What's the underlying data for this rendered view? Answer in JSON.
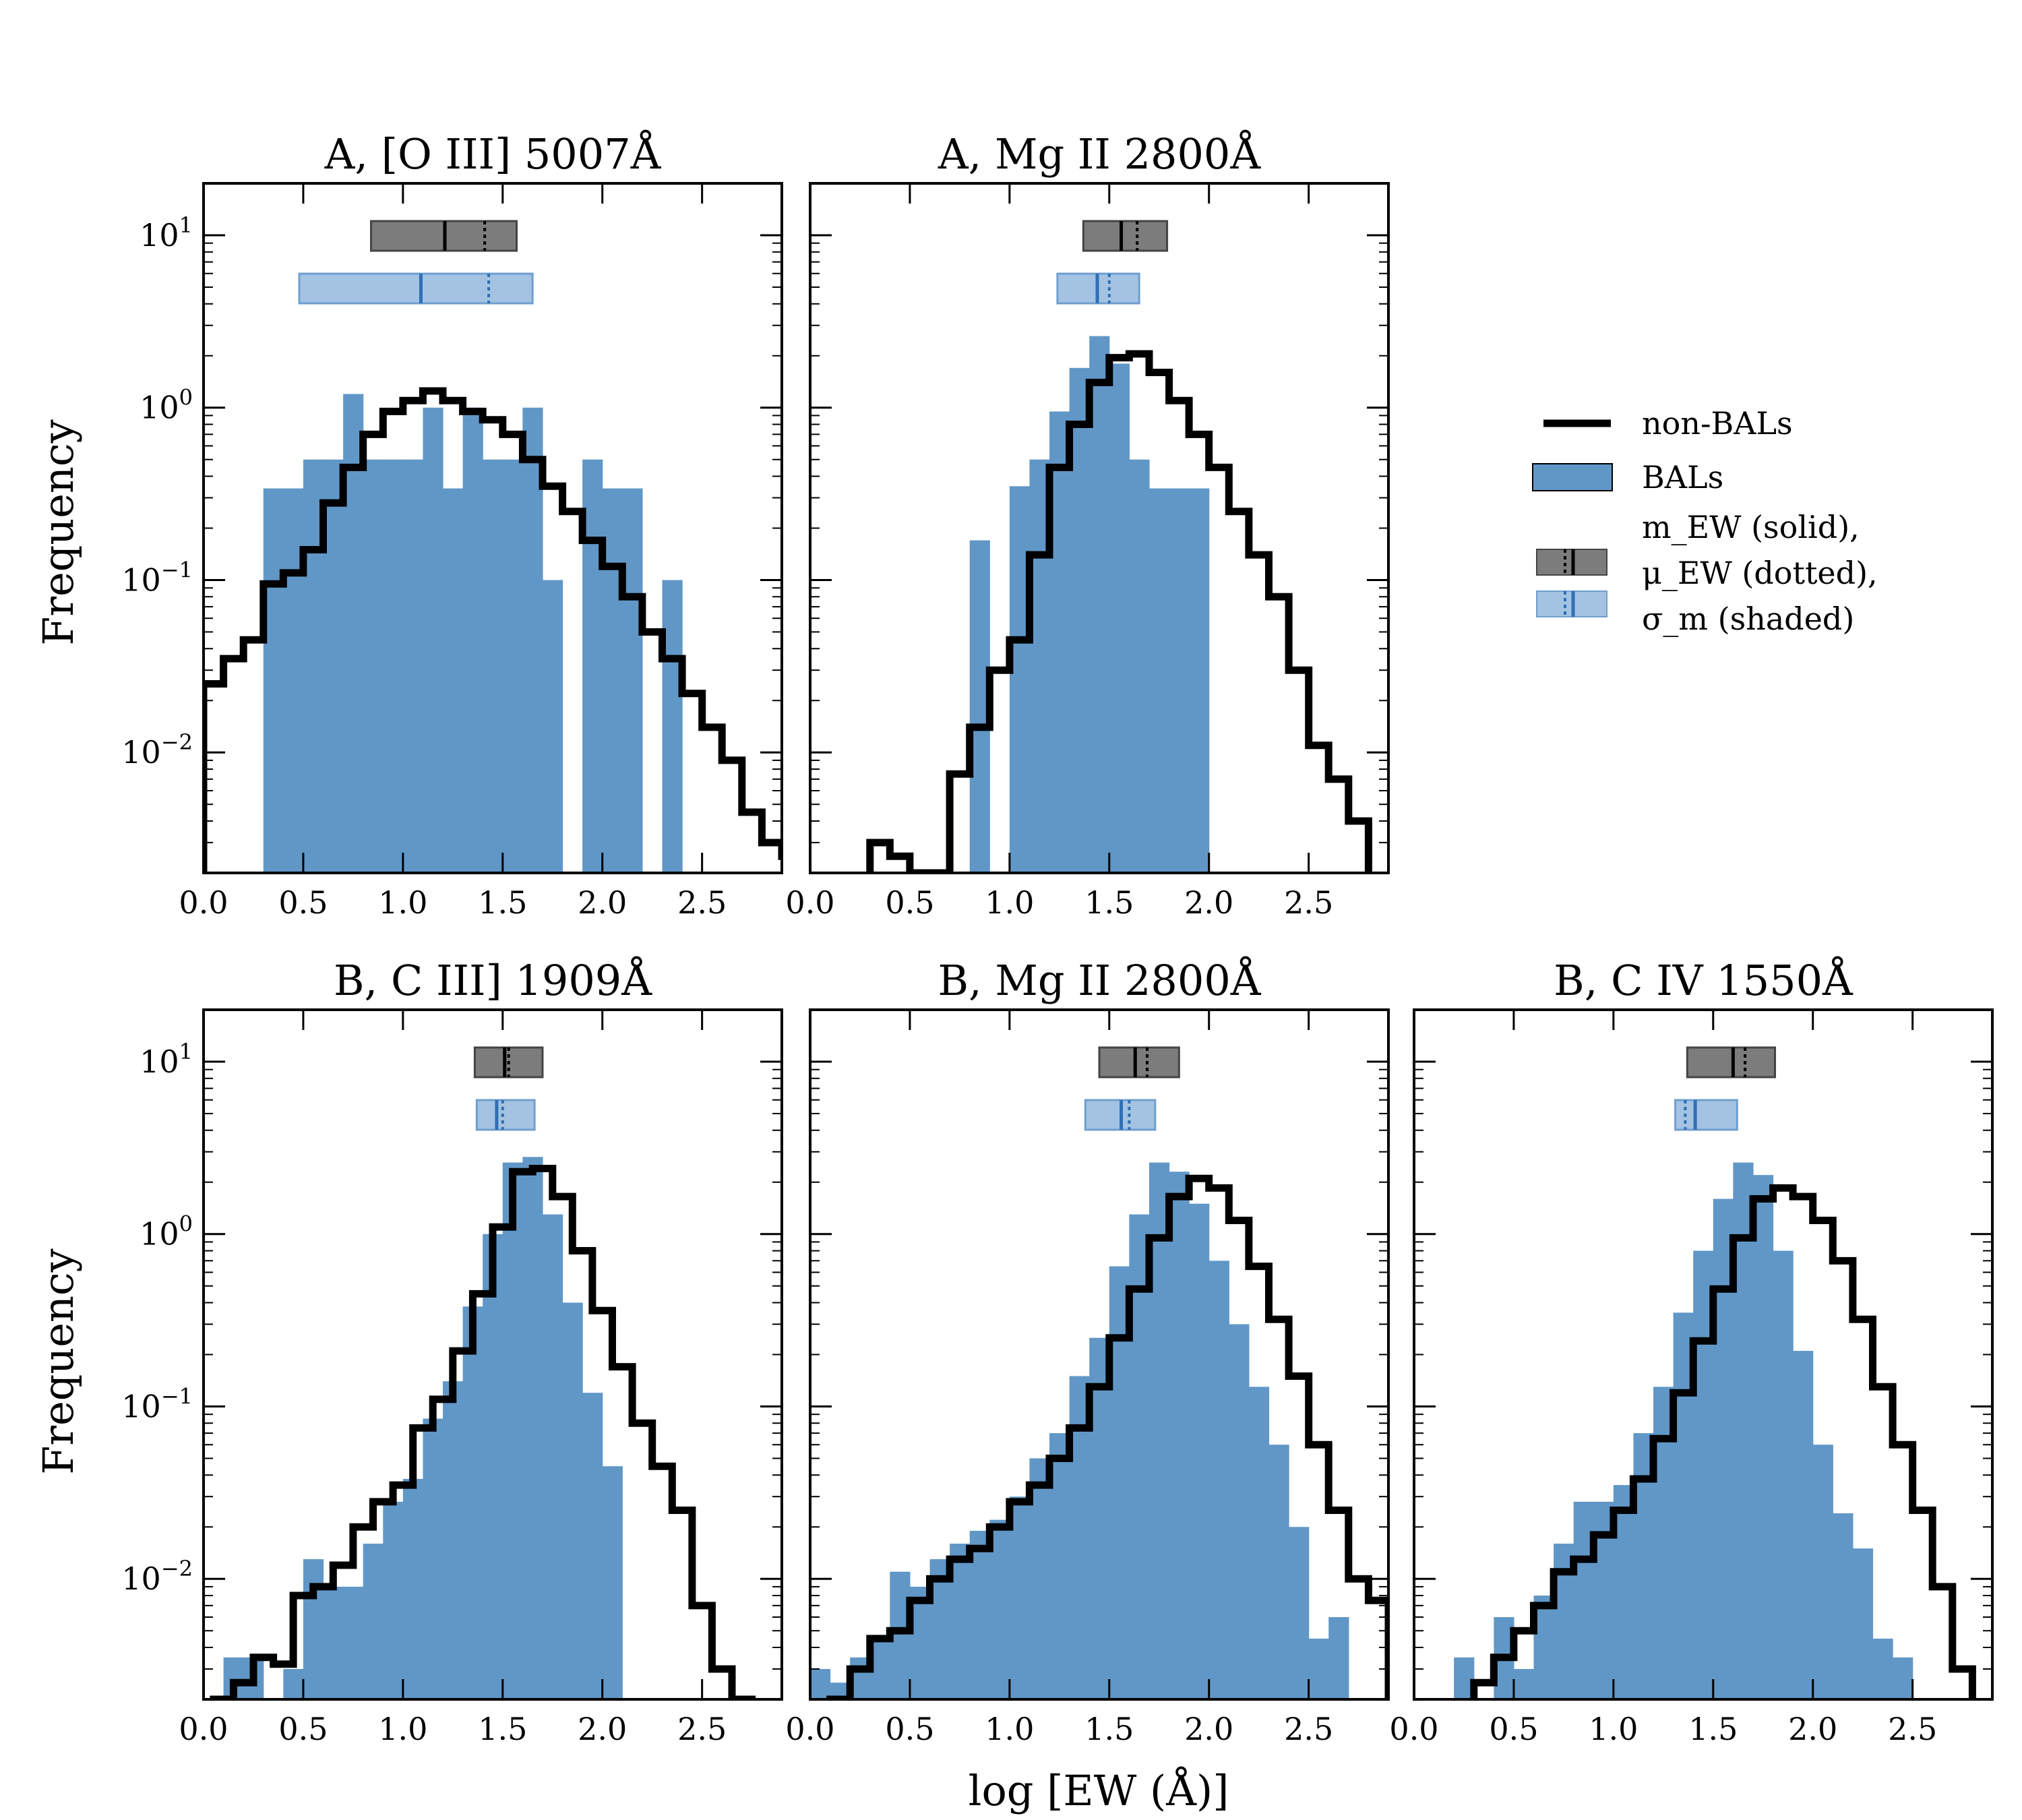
{
  "figure": {
    "xlabel": "log [EW (Å)]",
    "ylabel": "Frequency",
    "legend": {
      "placement": "right",
      "nonbal_label": "non-BALs",
      "bal_label": "BALs",
      "markers_label_lines": [
        "m_EW (solid),",
        "μ_EW (dotted),",
        "σ_m (shaded)"
      ]
    },
    "colors": {
      "bal_fill": "#6097c7",
      "bal_marker_fill": "#a4c3e2",
      "bal_marker_line": "#2f6fb5",
      "nonbal_line": "#000000",
      "nonbal_marker_fill": "#7c7c7c"
    }
  },
  "chart_data": [
    {
      "type": "histogram",
      "title": "A, [O III] 5007Å",
      "xlim": [
        0,
        2.9
      ],
      "ylim": [
        0.002,
        20
      ],
      "yscale": "log",
      "xticks": [
        "0.0",
        "0.5",
        "1.0",
        "1.5",
        "2.0",
        "2.5"
      ],
      "yticks": [
        "10^-2",
        "10^-1",
        "10^0",
        "10^1"
      ],
      "bin_width": 0.1,
      "bal_bins_start": 0.3,
      "bal_values": [
        0.34,
        0.34,
        0.5,
        0.5,
        1.2,
        0.5,
        0.5,
        0.5,
        1.0,
        0.34,
        1.0,
        0.5,
        0.5,
        1.0,
        0.1,
        0.002,
        0.5,
        0.34,
        0.34,
        0.002,
        0.1,
        0.002
      ],
      "nonbal_bins_start": 0.0,
      "nonbal_values": [
        0.025,
        0.035,
        0.045,
        0.095,
        0.11,
        0.15,
        0.28,
        0.45,
        0.7,
        0.95,
        1.1,
        1.25,
        1.1,
        0.95,
        0.85,
        0.7,
        0.5,
        0.35,
        0.25,
        0.17,
        0.12,
        0.08,
        0.05,
        0.035,
        0.022,
        0.014,
        0.009,
        0.0045,
        0.003,
        0.0025
      ],
      "nonbal_marker": {
        "median": 1.21,
        "mean": 1.41,
        "sigma": [
          0.84,
          1.57
        ]
      },
      "bal_marker": {
        "median": 1.09,
        "mean": 1.43,
        "sigma": [
          0.48,
          1.65
        ]
      }
    },
    {
      "type": "histogram",
      "title": "A, Mg II 2800Å",
      "xlim": [
        0,
        2.9
      ],
      "ylim": [
        0.002,
        20
      ],
      "yscale": "log",
      "xticks": [
        "0.0",
        "0.5",
        "1.0",
        "1.5",
        "2.0",
        "2.5"
      ],
      "yticks": [
        "10^-2",
        "10^-1",
        "10^0",
        "10^1"
      ],
      "bin_width": 0.1,
      "bal_bins_start": 0.8,
      "bal_values": [
        0.17,
        0.002,
        0.35,
        0.5,
        0.95,
        1.7,
        2.6,
        1.8,
        0.5,
        0.34,
        0.34,
        0.34
      ],
      "nonbal_bins_start": 0.3,
      "nonbal_values": [
        0.003,
        0.0025,
        0.002,
        0.002,
        0.0075,
        0.014,
        0.03,
        0.045,
        0.14,
        0.45,
        0.8,
        1.4,
        1.95,
        2.05,
        1.6,
        1.1,
        0.7,
        0.45,
        0.25,
        0.14,
        0.08,
        0.03,
        0.011,
        0.007,
        0.004
      ],
      "nonbal_marker": {
        "median": 1.56,
        "mean": 1.64,
        "sigma": [
          1.37,
          1.79
        ]
      },
      "bal_marker": {
        "median": 1.44,
        "mean": 1.5,
        "sigma": [
          1.24,
          1.65
        ]
      }
    },
    {
      "type": "histogram",
      "title": "B, C III] 1909Å",
      "xlim": [
        0,
        2.9
      ],
      "ylim": [
        0.002,
        20
      ],
      "yscale": "log",
      "xticks": [
        "0.0",
        "0.5",
        "1.0",
        "1.5",
        "2.0",
        "2.5"
      ],
      "yticks": [
        "10^-2",
        "10^-1",
        "10^0",
        "10^1"
      ],
      "bin_width": 0.1,
      "bal_bins_start": 0.1,
      "bal_values": [
        0.0035,
        0.0035,
        0.002,
        0.003,
        0.013,
        0.009,
        0.009,
        0.016,
        0.028,
        0.038,
        0.085,
        0.14,
        0.38,
        1.0,
        2.6,
        2.8,
        1.3,
        0.4,
        0.12,
        0.045
      ],
      "nonbal_bins_start": 0.05,
      "nonbal_values": [
        0.002,
        0.0025,
        0.0035,
        0.0032,
        0.008,
        0.009,
        0.012,
        0.02,
        0.028,
        0.035,
        0.075,
        0.11,
        0.21,
        0.45,
        1.1,
        2.3,
        2.4,
        1.65,
        0.8,
        0.36,
        0.17,
        0.08,
        0.045,
        0.025,
        0.007,
        0.003,
        0.002
      ],
      "nonbal_marker": {
        "median": 1.51,
        "mean": 1.53,
        "sigma": [
          1.36,
          1.7
        ]
      },
      "bal_marker": {
        "median": 1.47,
        "mean": 1.5,
        "sigma": [
          1.37,
          1.66
        ]
      }
    },
    {
      "type": "histogram",
      "title": "B, Mg II 2800Å",
      "xlim": [
        0,
        2.9
      ],
      "ylim": [
        0.002,
        20
      ],
      "yscale": "log",
      "xticks": [
        "0.0",
        "0.5",
        "1.0",
        "1.5",
        "2.0",
        "2.5"
      ],
      "yticks": [
        "10^-2",
        "10^-1",
        "10^0",
        "10^1"
      ],
      "bin_width": 0.1,
      "bal_bins_start": 0.0,
      "bal_values": [
        0.003,
        0.0025,
        0.0035,
        0.0045,
        0.011,
        0.009,
        0.013,
        0.016,
        0.019,
        0.022,
        0.03,
        0.05,
        0.07,
        0.15,
        0.25,
        0.65,
        1.3,
        2.6,
        2.3,
        1.5,
        0.7,
        0.3,
        0.13,
        0.06,
        0.02,
        0.0045,
        0.006
      ],
      "nonbal_bins_start": 0.1,
      "nonbal_values": [
        0.002,
        0.003,
        0.0045,
        0.005,
        0.0075,
        0.01,
        0.013,
        0.015,
        0.02,
        0.028,
        0.035,
        0.05,
        0.075,
        0.13,
        0.25,
        0.48,
        0.95,
        1.65,
        2.1,
        1.85,
        1.2,
        0.65,
        0.32,
        0.15,
        0.06,
        0.025,
        0.01,
        0.0075,
        0.002
      ],
      "nonbal_marker": {
        "median": 1.63,
        "mean": 1.69,
        "sigma": [
          1.45,
          1.85
        ]
      },
      "bal_marker": {
        "median": 1.56,
        "mean": 1.6,
        "sigma": [
          1.38,
          1.73
        ]
      }
    },
    {
      "type": "histogram",
      "title": "B, C IV 1550Å",
      "xlim": [
        0,
        2.9
      ],
      "ylim": [
        0.002,
        20
      ],
      "yscale": "log",
      "xticks": [
        "0.0",
        "0.5",
        "1.0",
        "1.5",
        "2.0",
        "2.5"
      ],
      "yticks": [
        "10^-2",
        "10^-1",
        "10^0",
        "10^1"
      ],
      "bin_width": 0.1,
      "bal_bins_start": 0.2,
      "bal_values": [
        0.0035,
        0.002,
        0.006,
        0.003,
        0.008,
        0.016,
        0.028,
        0.028,
        0.035,
        0.07,
        0.13,
        0.35,
        0.8,
        1.6,
        2.6,
        2.2,
        0.8,
        0.21,
        0.06,
        0.024,
        0.015,
        0.0045,
        0.0035
      ],
      "nonbal_bins_start": 0.3,
      "nonbal_values": [
        0.0025,
        0.0035,
        0.005,
        0.007,
        0.011,
        0.013,
        0.018,
        0.025,
        0.038,
        0.065,
        0.12,
        0.24,
        0.48,
        0.95,
        1.6,
        1.85,
        1.65,
        1.2,
        0.7,
        0.32,
        0.13,
        0.06,
        0.025,
        0.009,
        0.003
      ],
      "nonbal_marker": {
        "median": 1.6,
        "mean": 1.66,
        "sigma": [
          1.37,
          1.81
        ]
      },
      "bal_marker": {
        "median": 1.41,
        "mean": 1.36,
        "sigma": [
          1.31,
          1.62
        ]
      }
    }
  ]
}
